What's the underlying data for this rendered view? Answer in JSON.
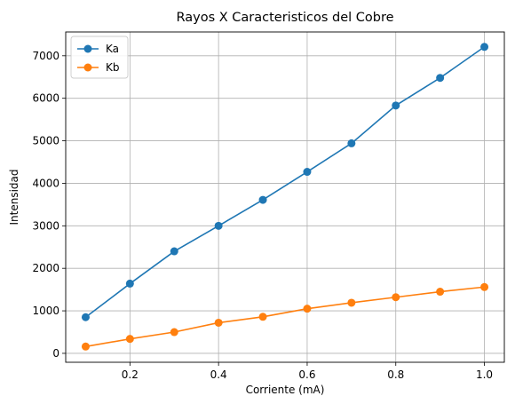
{
  "chart_data": {
    "type": "line",
    "title": "Rayos X Caracteristicos del Cobre",
    "xlabel": "Corriente (mA)",
    "ylabel": "Intensidad",
    "x": [
      0.1,
      0.2,
      0.3,
      0.4,
      0.5,
      0.6,
      0.7,
      0.8,
      0.9,
      1.0
    ],
    "series": [
      {
        "name": "Ka",
        "color": "#1f77b4",
        "values": [
          850,
          1640,
          2400,
          3000,
          3610,
          4270,
          4940,
          5830,
          6480,
          7210
        ]
      },
      {
        "name": "Kb",
        "color": "#ff7f0e",
        "values": [
          160,
          340,
          500,
          720,
          860,
          1050,
          1190,
          1320,
          1450,
          1560
        ]
      }
    ],
    "xlim": [
      0.055,
      1.045
    ],
    "ylim": [
      -210,
      7560
    ],
    "xticks": [
      0.2,
      0.4,
      0.6,
      0.8,
      1.0
    ],
    "xtick_labels": [
      "0.2",
      "0.4",
      "0.6",
      "0.8",
      "1.0"
    ],
    "yticks": [
      0,
      1000,
      2000,
      3000,
      4000,
      5000,
      6000,
      7000
    ],
    "ytick_labels": [
      "0",
      "1000",
      "2000",
      "3000",
      "4000",
      "5000",
      "6000",
      "7000"
    ],
    "grid": true,
    "legend_position": "top-left",
    "markers": "circle"
  }
}
